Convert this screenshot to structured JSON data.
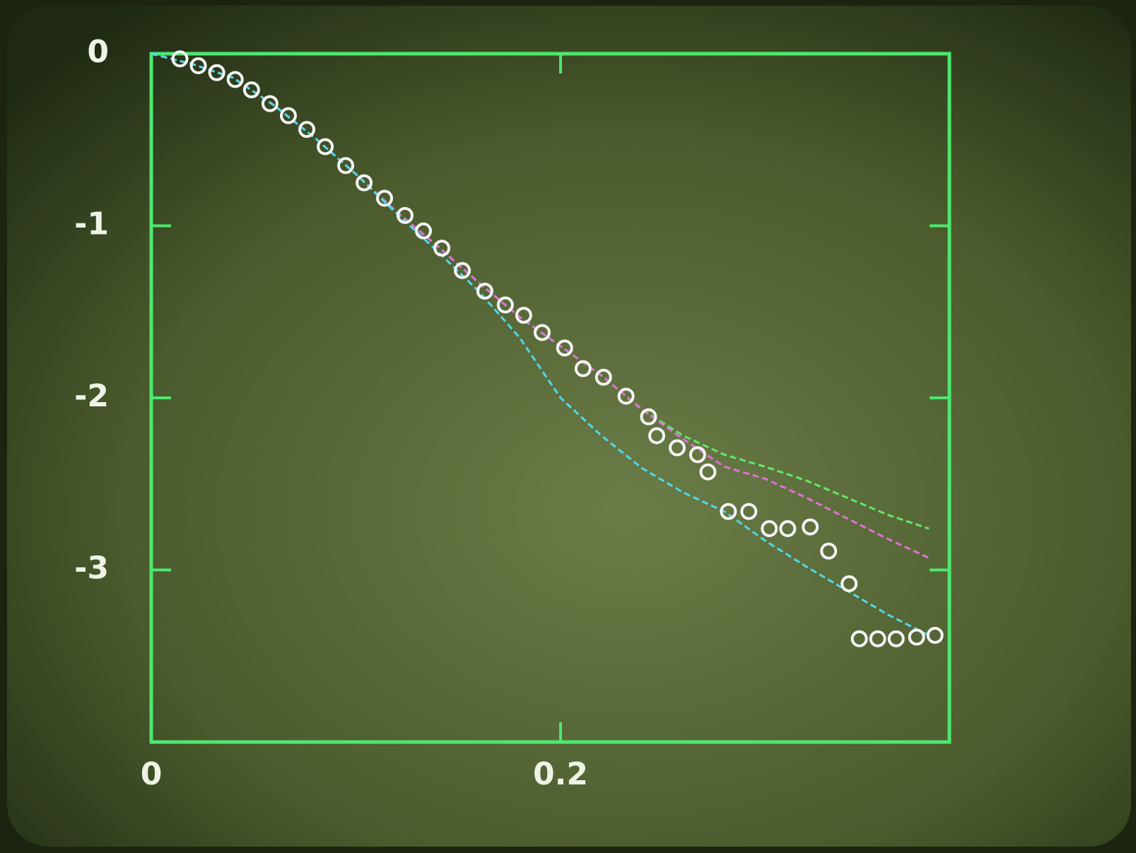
{
  "chart_data": {
    "type": "scatter",
    "xlim": [
      0,
      0.39
    ],
    "ylim": [
      -4,
      0
    ],
    "xticks": [
      0,
      {
        "value": 0.2,
        "label": "0.2"
      }
    ],
    "yticks": [
      0,
      -1,
      -2,
      -3
    ],
    "axis_color": "#4de870",
    "label_color": "#eef3e6",
    "series": [
      {
        "type": "line",
        "color": "#5fe86a",
        "dashed": true,
        "x": [
          0,
          0.02,
          0.04,
          0.06,
          0.08,
          0.1,
          0.12,
          0.14,
          0.16,
          0.18,
          0.2,
          0.22,
          0.24,
          0.26,
          0.28,
          0.3,
          0.32,
          0.34,
          0.36,
          0.38
        ],
        "values": [
          0,
          -0.06,
          -0.14,
          -0.3,
          -0.49,
          -0.7,
          -0.92,
          -1.12,
          -1.33,
          -1.53,
          -1.7,
          -1.87,
          -2.07,
          -2.22,
          -2.33,
          -2.4,
          -2.48,
          -2.58,
          -2.68,
          -2.76
        ]
      },
      {
        "type": "line",
        "color": "#e070d8",
        "dashed": true,
        "x": [
          0,
          0.02,
          0.04,
          0.06,
          0.08,
          0.1,
          0.12,
          0.14,
          0.16,
          0.18,
          0.2,
          0.22,
          0.24,
          0.26,
          0.28,
          0.3,
          0.32,
          0.34,
          0.36,
          0.38
        ],
        "values": [
          0,
          -0.06,
          -0.14,
          -0.3,
          -0.49,
          -0.7,
          -0.92,
          -1.12,
          -1.33,
          -1.53,
          -1.7,
          -1.87,
          -2.07,
          -2.24,
          -2.4,
          -2.47,
          -2.58,
          -2.7,
          -2.82,
          -2.93
        ]
      },
      {
        "type": "line",
        "color": "#4fd8e8",
        "dashed": true,
        "x": [
          0,
          0.02,
          0.04,
          0.06,
          0.08,
          0.1,
          0.12,
          0.14,
          0.16,
          0.18,
          0.2,
          0.22,
          0.24,
          0.26,
          0.28,
          0.3,
          0.32,
          0.34,
          0.36,
          0.38
        ],
        "values": [
          0,
          -0.06,
          -0.14,
          -0.3,
          -0.49,
          -0.7,
          -0.93,
          -1.15,
          -1.38,
          -1.65,
          -2.0,
          -2.22,
          -2.41,
          -2.55,
          -2.66,
          -2.83,
          -2.98,
          -3.12,
          -3.26,
          -3.38
        ]
      },
      {
        "type": "scatter",
        "color": "#f4f4f4",
        "x": [
          0.014,
          0.023,
          0.032,
          0.041,
          0.049,
          0.058,
          0.067,
          0.076,
          0.085,
          0.095,
          0.104,
          0.114,
          0.124,
          0.133,
          0.142,
          0.152,
          0.163,
          0.173,
          0.182,
          0.191,
          0.202,
          0.211,
          0.221,
          0.232,
          0.243,
          0.247,
          0.257,
          0.267,
          0.272,
          0.282,
          0.292,
          0.302,
          0.311,
          0.322,
          0.331,
          0.341,
          0.346,
          0.355,
          0.364,
          0.374,
          0.383
        ],
        "values": [
          -0.03,
          -0.07,
          -0.11,
          -0.15,
          -0.21,
          -0.29,
          -0.36,
          -0.44,
          -0.54,
          -0.65,
          -0.75,
          -0.84,
          -0.94,
          -1.03,
          -1.13,
          -1.26,
          -1.38,
          -1.46,
          -1.52,
          -1.62,
          -1.71,
          -1.83,
          -1.88,
          -1.99,
          -2.11,
          -2.22,
          -2.29,
          -2.33,
          -2.43,
          -2.66,
          -2.66,
          -2.76,
          -2.76,
          -2.75,
          -2.89,
          -3.08,
          -3.4,
          -3.4,
          -3.4,
          -3.39,
          -3.38
        ]
      }
    ]
  }
}
